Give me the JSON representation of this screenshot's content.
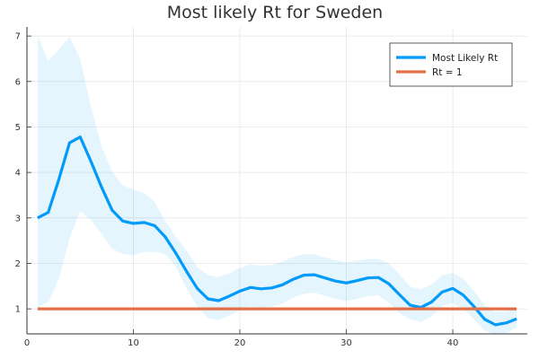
{
  "chart_data": {
    "type": "line",
    "title": "Most likely Rt for Sweden",
    "xlabel": "",
    "ylabel": "",
    "xlim": [
      0,
      47
    ],
    "ylim": [
      0.45,
      7.2
    ],
    "x_ticks": [
      0,
      10,
      20,
      30,
      40
    ],
    "y_ticks": [
      1,
      2,
      3,
      4,
      5,
      6,
      7
    ],
    "grid": true,
    "legend_position": "top-right",
    "x": [
      1,
      2,
      3,
      4,
      5,
      6,
      7,
      8,
      9,
      10,
      11,
      12,
      13,
      14,
      15,
      16,
      17,
      18,
      19,
      20,
      21,
      22,
      23,
      24,
      25,
      26,
      27,
      28,
      29,
      30,
      31,
      32,
      33,
      34,
      35,
      36,
      37,
      38,
      39,
      40,
      41,
      42,
      43,
      44,
      45,
      46
    ],
    "series": [
      {
        "name": "Most Likely Rt",
        "color": "#009AF9",
        "values": [
          3.0,
          3.12,
          3.85,
          4.65,
          4.78,
          4.25,
          3.68,
          3.17,
          2.93,
          2.88,
          2.9,
          2.83,
          2.58,
          2.22,
          1.82,
          1.45,
          1.22,
          1.18,
          1.28,
          1.39,
          1.47,
          1.44,
          1.46,
          1.53,
          1.65,
          1.74,
          1.75,
          1.68,
          1.61,
          1.57,
          1.62,
          1.68,
          1.69,
          1.55,
          1.31,
          1.08,
          1.03,
          1.15,
          1.37,
          1.45,
          1.3,
          1.05,
          0.77,
          0.65,
          0.69,
          0.78
        ]
      },
      {
        "name": "Rt = 1",
        "color": "#E26F46",
        "values": [
          1,
          1,
          1,
          1,
          1,
          1,
          1,
          1,
          1,
          1,
          1,
          1,
          1,
          1,
          1,
          1,
          1,
          1,
          1,
          1,
          1,
          1,
          1,
          1,
          1,
          1,
          1,
          1,
          1,
          1,
          1,
          1,
          1,
          1,
          1,
          1,
          1,
          1,
          1,
          1,
          1,
          1,
          1,
          1,
          1,
          1
        ]
      }
    ],
    "band": {
      "color": "#009AF9",
      "upper": [
        7.0,
        6.45,
        6.7,
        6.98,
        6.5,
        5.45,
        4.58,
        4.02,
        3.72,
        3.62,
        3.55,
        3.35,
        2.92,
        2.58,
        2.28,
        1.92,
        1.74,
        1.7,
        1.78,
        1.9,
        1.98,
        1.95,
        1.97,
        2.04,
        2.14,
        2.2,
        2.2,
        2.13,
        2.07,
        2.03,
        2.06,
        2.1,
        2.1,
        2.0,
        1.76,
        1.49,
        1.43,
        1.54,
        1.74,
        1.79,
        1.66,
        1.39,
        1.08,
        0.93,
        0.95,
        1.01
      ],
      "lower": [
        1.03,
        1.15,
        1.65,
        2.55,
        3.15,
        2.95,
        2.65,
        2.32,
        2.21,
        2.18,
        2.25,
        2.25,
        2.2,
        1.91,
        1.44,
        1.05,
        0.8,
        0.75,
        0.85,
        0.98,
        1.05,
        1.03,
        1.05,
        1.11,
        1.25,
        1.33,
        1.35,
        1.29,
        1.22,
        1.17,
        1.22,
        1.28,
        1.3,
        1.13,
        0.9,
        0.77,
        0.71,
        0.83,
        1.06,
        1.13,
        1.0,
        0.76,
        0.52,
        0.43,
        0.47,
        0.58
      ]
    }
  }
}
